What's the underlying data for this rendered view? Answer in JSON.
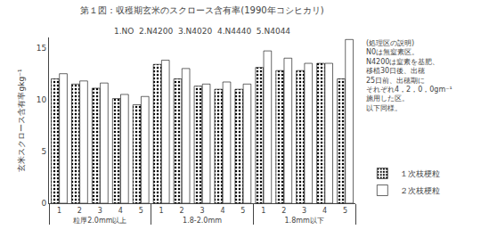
{
  "chart_data": {
    "type": "bar",
    "title": "第１図：収穫期玄米のスクロース含有率(1990年コシヒカリ)",
    "subtitle": "1.NO  2.N4200  3.N4020  4.N4440  5.N4044",
    "ylabel": "玄米スクロース含有率gkg⁻¹",
    "categories": [
      [
        "粒厚2.0mm以上",
        "1"
      ],
      [
        "粒厚2.0mm以上",
        "2"
      ],
      [
        "粒厚2.0mm以上",
        "3"
      ],
      [
        "粒厚2.0mm以上",
        "4"
      ],
      [
        "粒厚2.0mm以上",
        "5"
      ],
      [
        "1.8-2.0mm",
        "1"
      ],
      [
        "1.8-2.0mm",
        "2"
      ],
      [
        "1.8-2.0mm",
        "3"
      ],
      [
        "1.8-2.0mm",
        "4"
      ],
      [
        "1.8-2.0mm",
        "5"
      ],
      [
        "1.8mm以下",
        "1"
      ],
      [
        "1.8mm以下",
        "2"
      ],
      [
        "1.8mm以下",
        "3"
      ],
      [
        "1.8mm以下",
        "4"
      ],
      [
        "1.8mm以下",
        "5"
      ]
    ],
    "series": [
      {
        "name": "１次枝梗粒",
        "color": "#d0d0d0",
        "marker": ".",
        "values": [
          12.0,
          11.5,
          11.1,
          10.1,
          9.5,
          13.4,
          12.0,
          11.3,
          11.0,
          11.0,
          13.1,
          12.8,
          12.8,
          13.5,
          12.0
        ]
      },
      {
        "name": "２次枝梗粒",
        "color": "#ffffff",
        "values": [
          12.5,
          11.8,
          11.6,
          10.5,
          10.3,
          13.8,
          13.0,
          11.5,
          11.7,
          11.5,
          14.7,
          14.0,
          13.5,
          13.5,
          15.8
        ]
      }
    ],
    "annotations": [
      "(処理区の説明)",
      "N0は無窒素区。",
      "N4200は窒素を基肥、",
      "移植30日後、出穂",
      "25日前、出穂期に",
      "それぞれ4，2，0，0gm⁻¹",
      "施用した区。",
      "以下同様。"
    ],
    "ylim": [
      0,
      16
    ],
    "yticks": [
      0,
      5,
      10,
      15
    ],
    "grid": false,
    "legend": "right"
  }
}
